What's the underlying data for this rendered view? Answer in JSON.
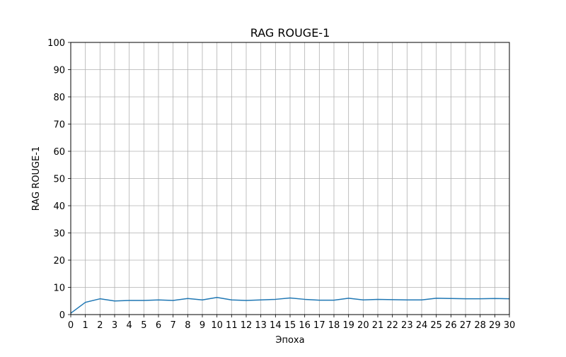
{
  "chart_data": {
    "type": "line",
    "title": "RAG ROUGE-1",
    "xlabel": "Эпоха",
    "ylabel": "RAG ROUGE-1",
    "xlim": [
      0,
      30
    ],
    "ylim": [
      0,
      100
    ],
    "xticks": [
      0,
      1,
      2,
      3,
      4,
      5,
      6,
      7,
      8,
      9,
      10,
      11,
      12,
      13,
      14,
      15,
      16,
      17,
      18,
      19,
      20,
      21,
      22,
      23,
      24,
      25,
      26,
      27,
      28,
      29,
      30
    ],
    "yticks": [
      0,
      10,
      20,
      30,
      40,
      50,
      60,
      70,
      80,
      90,
      100
    ],
    "grid": true,
    "line_color": "#1f77b4",
    "series": [
      {
        "x": [
          0,
          1,
          2,
          3,
          4,
          5,
          6,
          7,
          8,
          9,
          10,
          11,
          12,
          13,
          14,
          15,
          16,
          17,
          18,
          19,
          20,
          21,
          22,
          23,
          24,
          25,
          26,
          27,
          28,
          29,
          30
        ],
        "values": [
          0.5,
          4.5,
          5.8,
          5.0,
          5.2,
          5.2,
          5.4,
          5.2,
          5.9,
          5.4,
          6.3,
          5.4,
          5.2,
          5.4,
          5.6,
          6.1,
          5.6,
          5.3,
          5.3,
          6.0,
          5.4,
          5.6,
          5.5,
          5.4,
          5.4,
          6.0,
          5.9,
          5.8,
          5.8,
          5.9,
          5.8
        ]
      }
    ]
  }
}
